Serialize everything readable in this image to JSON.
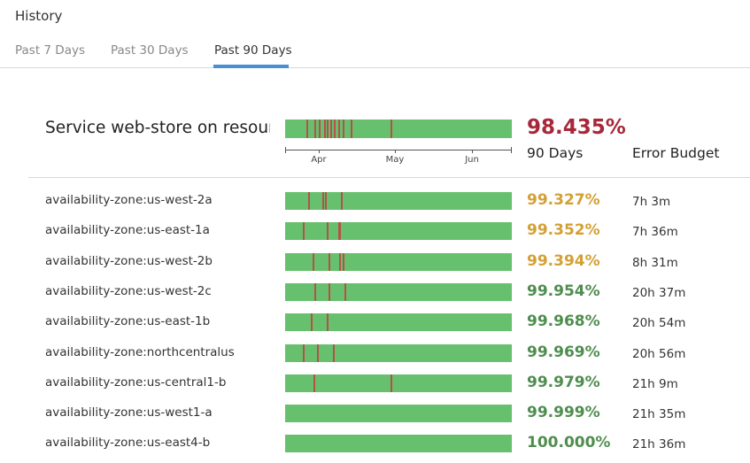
{
  "header": {
    "title": "History"
  },
  "tabs": [
    {
      "label": "Past 7 Days",
      "active": false
    },
    {
      "label": "Past 30 Days",
      "active": false
    },
    {
      "label": "Past 90 Days",
      "active": true
    }
  ],
  "summary": {
    "name": "Service web-store on resource",
    "uptime": "98.435%",
    "uptime_color": "#a7283a",
    "incidents_at": [
      0.095,
      0.13,
      0.15,
      0.17,
      0.185,
      0.2,
      0.215,
      0.235,
      0.255,
      0.29,
      0.465
    ]
  },
  "columns": {
    "days_label": "90 Days",
    "budget_label": "Error Budget"
  },
  "timeline_axis": {
    "months": [
      "Apr",
      "May",
      "Jun"
    ],
    "month_positions": [
      0.15,
      0.485,
      0.825
    ]
  },
  "colors": {
    "bar": "#67c06e",
    "incident": "#b5514a",
    "warning": "#d4a036",
    "ok": "#4f8d4f",
    "critical": "#a7283a",
    "accent": "#4a8fd0"
  },
  "rows": [
    {
      "name": "availability-zone:us-west-2a",
      "uptime": "99.327%",
      "budget": "7h 3m",
      "status": "warning",
      "incidents_at": [
        0.1,
        0.165,
        0.175,
        0.245
      ]
    },
    {
      "name": "availability-zone:us-east-1a",
      "uptime": "99.352%",
      "budget": "7h 36m",
      "status": "warning",
      "incidents_at": [
        0.08,
        0.185,
        0.235,
        0.24
      ]
    },
    {
      "name": "availability-zone:us-west-2b",
      "uptime": "99.394%",
      "budget": "8h 31m",
      "status": "warning",
      "incidents_at": [
        0.12,
        0.19,
        0.24,
        0.255
      ]
    },
    {
      "name": "availability-zone:us-west-2c",
      "uptime": "99.954%",
      "budget": "20h 37m",
      "status": "ok",
      "incidents_at": [
        0.13,
        0.19,
        0.26
      ]
    },
    {
      "name": "availability-zone:us-east-1b",
      "uptime": "99.968%",
      "budget": "20h 54m",
      "status": "ok",
      "incidents_at": [
        0.115,
        0.185
      ]
    },
    {
      "name": "availability-zone:northcentralus",
      "uptime": "99.969%",
      "budget": "20h 56m",
      "status": "ok",
      "incidents_at": [
        0.08,
        0.14,
        0.21
      ]
    },
    {
      "name": "availability-zone:us-central1-b",
      "uptime": "99.979%",
      "budget": "21h 9m",
      "status": "ok",
      "incidents_at": [
        0.125,
        0.465
      ]
    },
    {
      "name": "availability-zone:us-west1-a",
      "uptime": "99.999%",
      "budget": "21h 35m",
      "status": "ok",
      "incidents_at": []
    },
    {
      "name": "availability-zone:us-east4-b",
      "uptime": "100.000%",
      "budget": "21h 36m",
      "status": "ok",
      "incidents_at": []
    }
  ]
}
